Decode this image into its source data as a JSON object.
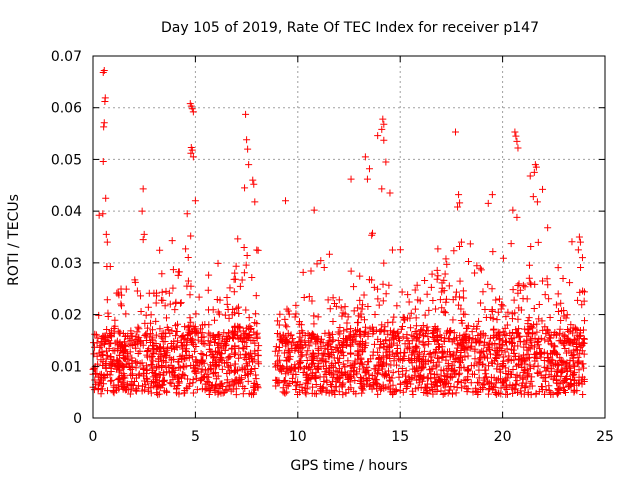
{
  "chart_data": {
    "type": "scatter",
    "title": "Day 105 of 2019, Rate Of TEC Index for receiver p147",
    "xlabel": "GPS time / hours",
    "ylabel": "ROTI / TECUs",
    "xlim": [
      0,
      25
    ],
    "ylim": [
      0,
      0.07
    ],
    "x_ticks": [
      0,
      5,
      10,
      15,
      20,
      25
    ],
    "x_tick_labels": [
      "0",
      "5",
      "10",
      "15",
      "20",
      "25"
    ],
    "y_ticks": [
      0,
      0.01,
      0.02,
      0.03,
      0.04,
      0.05,
      0.06,
      0.07
    ],
    "y_tick_labels": [
      "0",
      "0.01",
      "0.02",
      "0.03",
      "0.04",
      "0.05",
      "0.06",
      "0.07"
    ],
    "grid": true,
    "marker": "+",
    "series_color": "#ff0000",
    "data_gap_hours": [
      8.1,
      8.9
    ],
    "series": [
      {
        "name": "ROTI",
        "points": [
          [
            0.55,
            0.0672
          ],
          [
            0.5,
            0.0668
          ],
          [
            0.6,
            0.0619
          ],
          [
            0.58,
            0.0612
          ],
          [
            0.55,
            0.0571
          ],
          [
            0.52,
            0.0563
          ],
          [
            0.5,
            0.0496
          ],
          [
            0.62,
            0.0425
          ],
          [
            0.3,
            0.0392
          ],
          [
            0.48,
            0.0395
          ],
          [
            0.65,
            0.0355
          ],
          [
            0.7,
            0.034
          ],
          [
            2.45,
            0.0443
          ],
          [
            2.4,
            0.04
          ],
          [
            2.5,
            0.0355
          ],
          [
            2.45,
            0.0345
          ],
          [
            4.75,
            0.0608
          ],
          [
            4.8,
            0.0603
          ],
          [
            4.85,
            0.0598
          ],
          [
            4.9,
            0.0592
          ],
          [
            4.8,
            0.0523
          ],
          [
            4.85,
            0.0518
          ],
          [
            4.78,
            0.0512
          ],
          [
            4.9,
            0.0505
          ],
          [
            5.0,
            0.042
          ],
          [
            4.6,
            0.0395
          ],
          [
            7.45,
            0.0587
          ],
          [
            7.5,
            0.0538
          ],
          [
            7.55,
            0.052
          ],
          [
            7.6,
            0.049
          ],
          [
            7.8,
            0.046
          ],
          [
            7.85,
            0.0452
          ],
          [
            7.9,
            0.0418
          ],
          [
            7.4,
            0.0445
          ],
          [
            9.4,
            0.042
          ],
          [
            10.8,
            0.0402
          ],
          [
            12.6,
            0.0462
          ],
          [
            13.3,
            0.0505
          ],
          [
            13.5,
            0.0482
          ],
          [
            13.4,
            0.0462
          ],
          [
            13.9,
            0.0546
          ],
          [
            14.15,
            0.0578
          ],
          [
            14.2,
            0.0568
          ],
          [
            14.1,
            0.0558
          ],
          [
            14.2,
            0.0537
          ],
          [
            14.3,
            0.0495
          ],
          [
            14.1,
            0.0443
          ],
          [
            14.5,
            0.0435
          ],
          [
            17.7,
            0.0553
          ],
          [
            17.85,
            0.0432
          ],
          [
            17.9,
            0.0416
          ],
          [
            17.8,
            0.0408
          ],
          [
            19.5,
            0.0432
          ],
          [
            19.3,
            0.0415
          ],
          [
            20.6,
            0.0553
          ],
          [
            20.65,
            0.0545
          ],
          [
            20.7,
            0.0535
          ],
          [
            20.75,
            0.0522
          ],
          [
            20.5,
            0.0402
          ],
          [
            20.7,
            0.0388
          ],
          [
            21.35,
            0.0468
          ],
          [
            21.6,
            0.049
          ],
          [
            21.65,
            0.0485
          ],
          [
            21.55,
            0.0475
          ],
          [
            21.5,
            0.0428
          ],
          [
            21.95,
            0.0442
          ],
          [
            21.7,
            0.0418
          ],
          [
            22.2,
            0.0368
          ],
          [
            23.75,
            0.035
          ],
          [
            23.8,
            0.034
          ],
          [
            23.7,
            0.0325
          ],
          [
            23.9,
            0.031
          ]
        ],
        "band_description": "dense cloud of points between 0.004 and 0.016 TECU from 0 to 8.1 h and 8.9 to 24 h, with scattered spikes to 0.02-0.035"
      }
    ]
  }
}
